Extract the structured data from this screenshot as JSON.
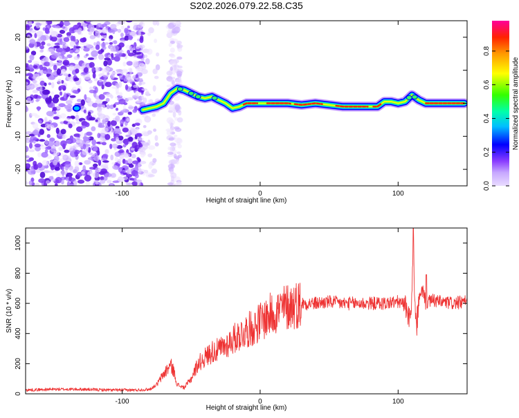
{
  "title": "S202.2026.079.22.58.C35",
  "colors": {
    "line": "#ee3333",
    "background": "#ffffff",
    "colormap": [
      "#e9dcff",
      "#c7a8ff",
      "#8a3cff",
      "#4b00f0",
      "#0000ff",
      "#00bfff",
      "#00ffaa",
      "#66ff00",
      "#ffff00",
      "#ff9900",
      "#ff2200",
      "#ff00aa"
    ]
  },
  "chart_data": [
    {
      "type": "heatmap",
      "title": "S202.2026.079.22.58.C35",
      "xlabel": "Height of straight line (km)",
      "ylabel": "Frequency (Hz)",
      "xlim": [
        -170,
        150
      ],
      "ylim": [
        -25,
        25
      ],
      "xticks": [
        -100,
        0,
        100
      ],
      "yticks": [
        -20,
        -10,
        0,
        10,
        20
      ],
      "colorbar": {
        "label": "Normalized spectral amplitude",
        "range": [
          0.0,
          0.98
        ],
        "ticks": [
          "0.0",
          "0.2",
          "0.4",
          "0.6",
          "0.8"
        ]
      },
      "ridge": {
        "x": [
          -85,
          -80,
          -75,
          -70,
          -65,
          -60,
          -55,
          -50,
          -45,
          -40,
          -35,
          -30,
          -25,
          -20,
          -15,
          -10,
          0,
          10,
          20,
          30,
          40,
          50,
          60,
          70,
          80,
          85,
          90,
          95,
          100,
          105,
          110,
          115,
          120,
          130,
          140,
          148
        ],
        "y": [
          -2,
          -1.5,
          -1,
          0,
          3,
          4.5,
          4,
          3,
          2,
          1.5,
          2,
          1,
          0,
          -1.5,
          -1,
          0,
          0,
          0,
          0,
          -0.5,
          0,
          -0.5,
          -1,
          -1,
          -1,
          -1,
          0.5,
          0.5,
          0,
          0.5,
          2.5,
          1,
          0,
          0,
          0,
          0
        ]
      },
      "isolated_blob": {
        "x": -133,
        "y": -1.5
      }
    },
    {
      "type": "line",
      "xlabel": "Height of straight line (km)",
      "ylabel": "SNR (10 * v/v)",
      "xlim": [
        -170,
        150
      ],
      "ylim": [
        0,
        1100
      ],
      "xticks": [
        -100,
        0,
        100
      ],
      "yticks": [
        0,
        200,
        400,
        600,
        800,
        1000
      ],
      "series": [
        {
          "name": "SNR",
          "x": [
            -170,
            -150,
            -130,
            -110,
            -90,
            -80,
            -75,
            -70,
            -65,
            -63,
            -60,
            -55,
            -50,
            -45,
            -40,
            -35,
            -30,
            -25,
            -20,
            -15,
            -10,
            -5,
            0,
            5,
            10,
            15,
            20,
            25,
            30,
            40,
            50,
            60,
            70,
            80,
            90,
            100,
            105,
            108,
            110,
            111,
            112,
            113,
            115,
            118,
            120,
            125,
            130,
            140,
            150
          ],
          "values": [
            25,
            30,
            30,
            25,
            25,
            30,
            60,
            130,
            190,
            160,
            60,
            40,
            100,
            200,
            240,
            280,
            290,
            320,
            360,
            390,
            420,
            440,
            480,
            510,
            540,
            560,
            580,
            590,
            600,
            600,
            610,
            600,
            600,
            600,
            600,
            610,
            590,
            520,
            620,
            1100,
            620,
            420,
            600,
            700,
            600,
            620,
            610,
            600,
            610
          ]
        }
      ]
    }
  ]
}
